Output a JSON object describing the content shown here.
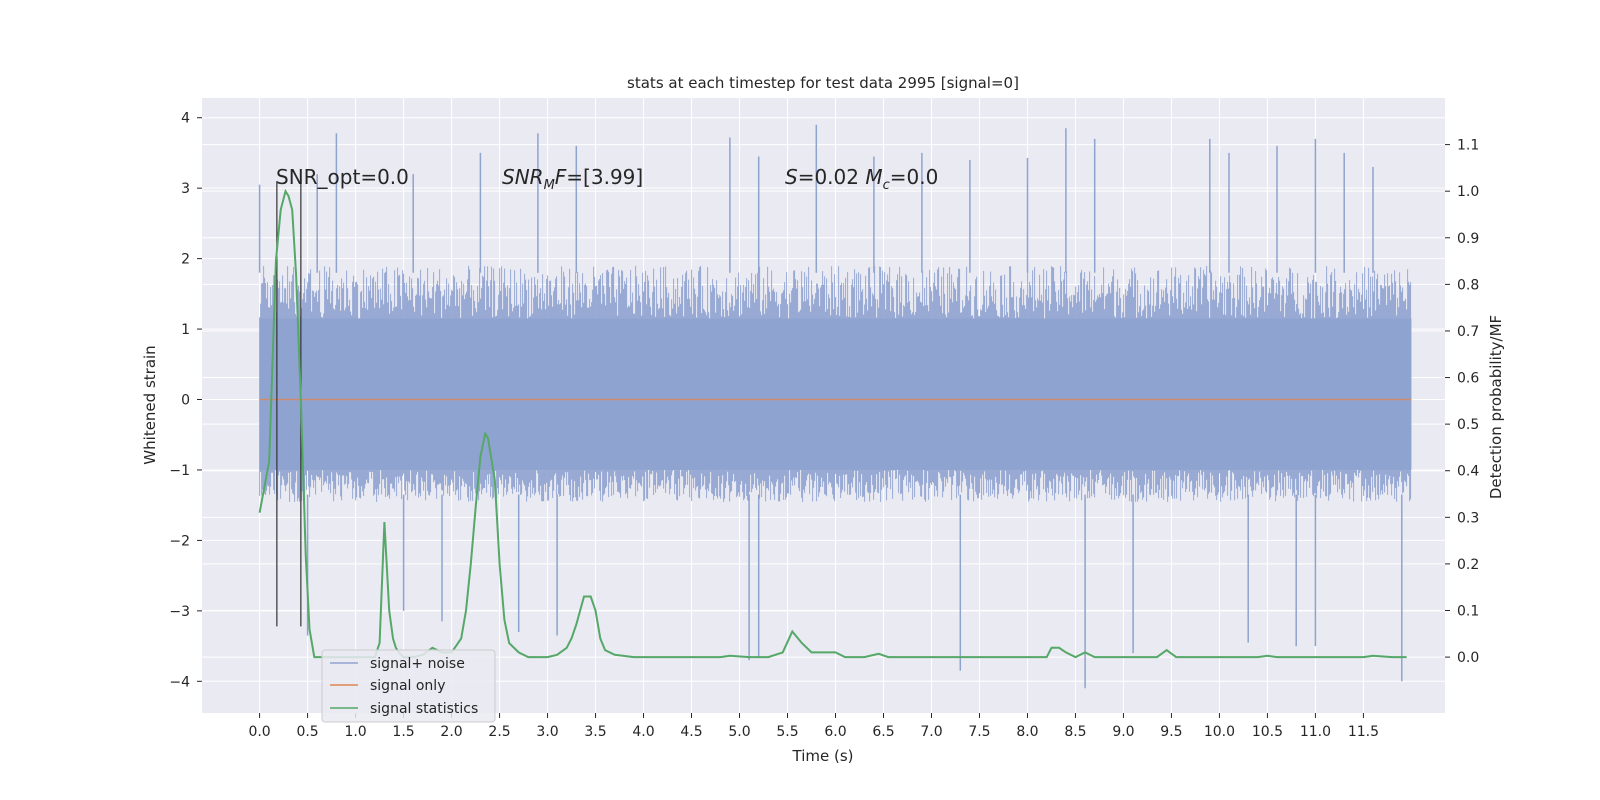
{
  "chart_data": {
    "type": "line",
    "title": "stats at each timestep for test data 2995 [signal=0]",
    "xlabel": "Time (s)",
    "ylabel": "Whitened strain",
    "ylabel_right": "Detection probability/MF",
    "xlim": [
      -0.6,
      12.35
    ],
    "ylim": [
      -4.45,
      4.28
    ],
    "ylim_right": [
      -0.12,
      1.2
    ],
    "x_ticks": [
      0.0,
      0.5,
      1.0,
      1.5,
      2.0,
      2.5,
      3.0,
      3.5,
      4.0,
      4.5,
      5.0,
      5.5,
      6.0,
      6.5,
      7.0,
      7.5,
      8.0,
      8.5,
      9.0,
      9.5,
      10.0,
      10.5,
      11.0,
      11.5
    ],
    "x_tick_labels": [
      "0.0",
      "0.5",
      "1.0",
      "1.5",
      "2.0",
      "2.5",
      "3.0",
      "3.5",
      "4.0",
      "4.5",
      "5.0",
      "5.5",
      "6.0",
      "6.5",
      "7.0",
      "7.5",
      "8.0",
      "8.5",
      "9.0",
      "9.5",
      "10.0",
      "10.5",
      "11.0",
      "11.5"
    ],
    "y_ticks": [
      4,
      3,
      2,
      1,
      0,
      -1,
      -2,
      -3,
      -4
    ],
    "y_tick_labels": [
      "4",
      "3",
      "2",
      "1",
      "0",
      "−1",
      "−2",
      "−3",
      "−4"
    ],
    "y_right_ticks": [
      1.1,
      1.0,
      0.9,
      0.8,
      0.7,
      0.6,
      0.5,
      0.4,
      0.3,
      0.2,
      0.1,
      0.0
    ],
    "y_right_tick_labels": [
      "1.1",
      "1.0",
      "0.9",
      "0.8",
      "0.7",
      "0.6",
      "0.5",
      "0.4",
      "0.3",
      "0.2",
      "0.1",
      "0.0"
    ],
    "grid": true,
    "legend_position": "lower-left",
    "annotations": [
      "SNR_opt=0.0",
      "SNR_MF=[3.99]",
      "S=0.02   M_c=0.0"
    ],
    "series": [
      {
        "name": "signal+ noise",
        "color": "#8fa3cf",
        "axis": "left",
        "style": "dense noise band",
        "x_range": [
          0.0,
          12.0
        ],
        "typical_range": [
          -1.35,
          1.8
        ],
        "peaks": [
          [
            0.0,
            3.05
          ],
          [
            0.6,
            3.2
          ],
          [
            0.8,
            3.78
          ],
          [
            1.6,
            3.2
          ],
          [
            2.3,
            3.5
          ],
          [
            2.9,
            3.78
          ],
          [
            3.3,
            3.6
          ],
          [
            4.9,
            3.72
          ],
          [
            5.2,
            3.45
          ],
          [
            5.8,
            3.9
          ],
          [
            6.4,
            3.45
          ],
          [
            6.9,
            3.5
          ],
          [
            7.4,
            3.4
          ],
          [
            8.0,
            3.43
          ],
          [
            8.4,
            3.85
          ],
          [
            8.7,
            3.7
          ],
          [
            9.9,
            3.7
          ],
          [
            10.1,
            3.5
          ],
          [
            10.6,
            3.6
          ],
          [
            11.0,
            3.7
          ],
          [
            11.3,
            3.5
          ],
          [
            11.6,
            3.3
          ]
        ],
        "troughs": [
          [
            0.5,
            -3.35
          ],
          [
            1.5,
            -3.0
          ],
          [
            1.9,
            -3.15
          ],
          [
            2.7,
            -3.3
          ],
          [
            3.1,
            -3.35
          ],
          [
            5.1,
            -3.7
          ],
          [
            5.2,
            -3.65
          ],
          [
            7.3,
            -3.85
          ],
          [
            8.6,
            -4.1
          ],
          [
            9.1,
            -3.6
          ],
          [
            10.3,
            -3.45
          ],
          [
            10.8,
            -3.5
          ],
          [
            11.0,
            -3.5
          ],
          [
            11.9,
            -4.0
          ]
        ]
      },
      {
        "name": "signal only",
        "color": "#dd8452",
        "axis": "left",
        "x": [
          0.0,
          12.0
        ],
        "values": [
          0.0,
          0.0
        ]
      },
      {
        "name": "signal statistics",
        "color": "#55a868",
        "axis": "right",
        "x": [
          0.0,
          0.1,
          0.17,
          0.22,
          0.27,
          0.3,
          0.34,
          0.38,
          0.43,
          0.48,
          0.52,
          0.57,
          0.6,
          0.65,
          0.75,
          0.85,
          1.0,
          1.1,
          1.2,
          1.25,
          1.3,
          1.35,
          1.39,
          1.42,
          1.45,
          1.5,
          1.6,
          1.7,
          1.8,
          1.9,
          2.0,
          2.1,
          2.15,
          2.2,
          2.25,
          2.3,
          2.35,
          2.38,
          2.45,
          2.5,
          2.55,
          2.6,
          2.7,
          2.8,
          2.9,
          3.0,
          3.1,
          3.2,
          3.25,
          3.3,
          3.38,
          3.45,
          3.5,
          3.55,
          3.6,
          3.7,
          3.9,
          4.2,
          4.5,
          4.8,
          4.9,
          5.1,
          5.3,
          5.45,
          5.55,
          5.65,
          5.75,
          5.85,
          6.0,
          6.1,
          6.2,
          6.3,
          6.45,
          6.55,
          6.65,
          6.9,
          7.2,
          7.5,
          7.8,
          8.0,
          8.2,
          8.25,
          8.33,
          8.4,
          8.5,
          8.6,
          8.7,
          8.8,
          9.0,
          9.2,
          9.35,
          9.45,
          9.55,
          9.7,
          9.9,
          10.2,
          10.4,
          10.5,
          10.6,
          10.8,
          11.0,
          11.3,
          11.5,
          11.6,
          11.8,
          11.95
        ],
        "values": [
          0.31,
          0.42,
          0.85,
          0.96,
          1.0,
          0.99,
          0.96,
          0.82,
          0.55,
          0.22,
          0.06,
          0.0,
          0.0,
          0.0,
          0.0,
          0.0,
          0.0,
          0.0,
          0.0,
          0.03,
          0.29,
          0.1,
          0.04,
          0.02,
          0.01,
          0.0,
          0.0,
          0.005,
          0.02,
          0.01,
          0.01,
          0.04,
          0.1,
          0.2,
          0.32,
          0.43,
          0.48,
          0.47,
          0.38,
          0.2,
          0.08,
          0.03,
          0.01,
          0.0,
          0.0,
          0.0,
          0.005,
          0.02,
          0.04,
          0.07,
          0.13,
          0.13,
          0.1,
          0.04,
          0.015,
          0.005,
          0.0,
          0.0,
          0.0,
          0.0,
          0.003,
          0.0,
          0.0,
          0.01,
          0.055,
          0.03,
          0.01,
          0.01,
          0.01,
          0.0,
          0.0,
          0.0,
          0.007,
          0.0,
          0.0,
          0.0,
          0.0,
          0.0,
          0.0,
          0.0,
          0.0,
          0.02,
          0.02,
          0.01,
          0.0,
          0.01,
          0.0,
          0.0,
          0.0,
          0.0,
          0.0,
          0.015,
          0.0,
          0.0,
          0.0,
          0.0,
          0.0,
          0.003,
          0.0,
          0.0,
          0.0,
          0.0,
          0.0,
          0.003,
          0.0,
          0.0
        ]
      }
    ],
    "vertical_markers": [
      {
        "x": 0.18,
        "y_range": [
          -3.22,
          3.1
        ],
        "color": "#333333"
      },
      {
        "x": 0.43,
        "y_range": [
          -3.22,
          3.1
        ],
        "color": "#333333"
      }
    ]
  }
}
